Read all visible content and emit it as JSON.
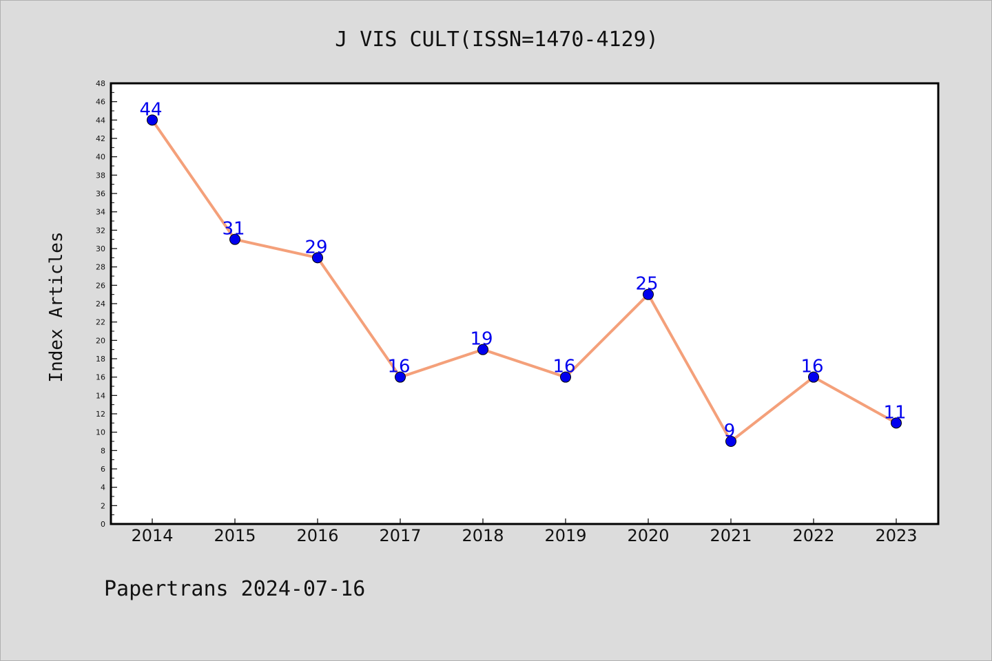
{
  "chart_data": {
    "type": "line",
    "title": "J VIS CULT(ISSN=1470-4129)",
    "xlabel": "",
    "ylabel": "Index Articles",
    "categories": [
      "2014",
      "2015",
      "2016",
      "2017",
      "2018",
      "2019",
      "2020",
      "2021",
      "2022",
      "2023"
    ],
    "series": [
      {
        "values": [
          44,
          31,
          29,
          16,
          19,
          16,
          25,
          9,
          16,
          11
        ]
      }
    ],
    "ylim": [
      0,
      48
    ],
    "ytick_step": 2,
    "grid": false,
    "data_labels": true,
    "colors": {
      "line": "#f4a07a",
      "marker": "#0000ee",
      "label": "#0000ee"
    }
  },
  "footer": {
    "text": "Papertrans 2024-07-16"
  }
}
